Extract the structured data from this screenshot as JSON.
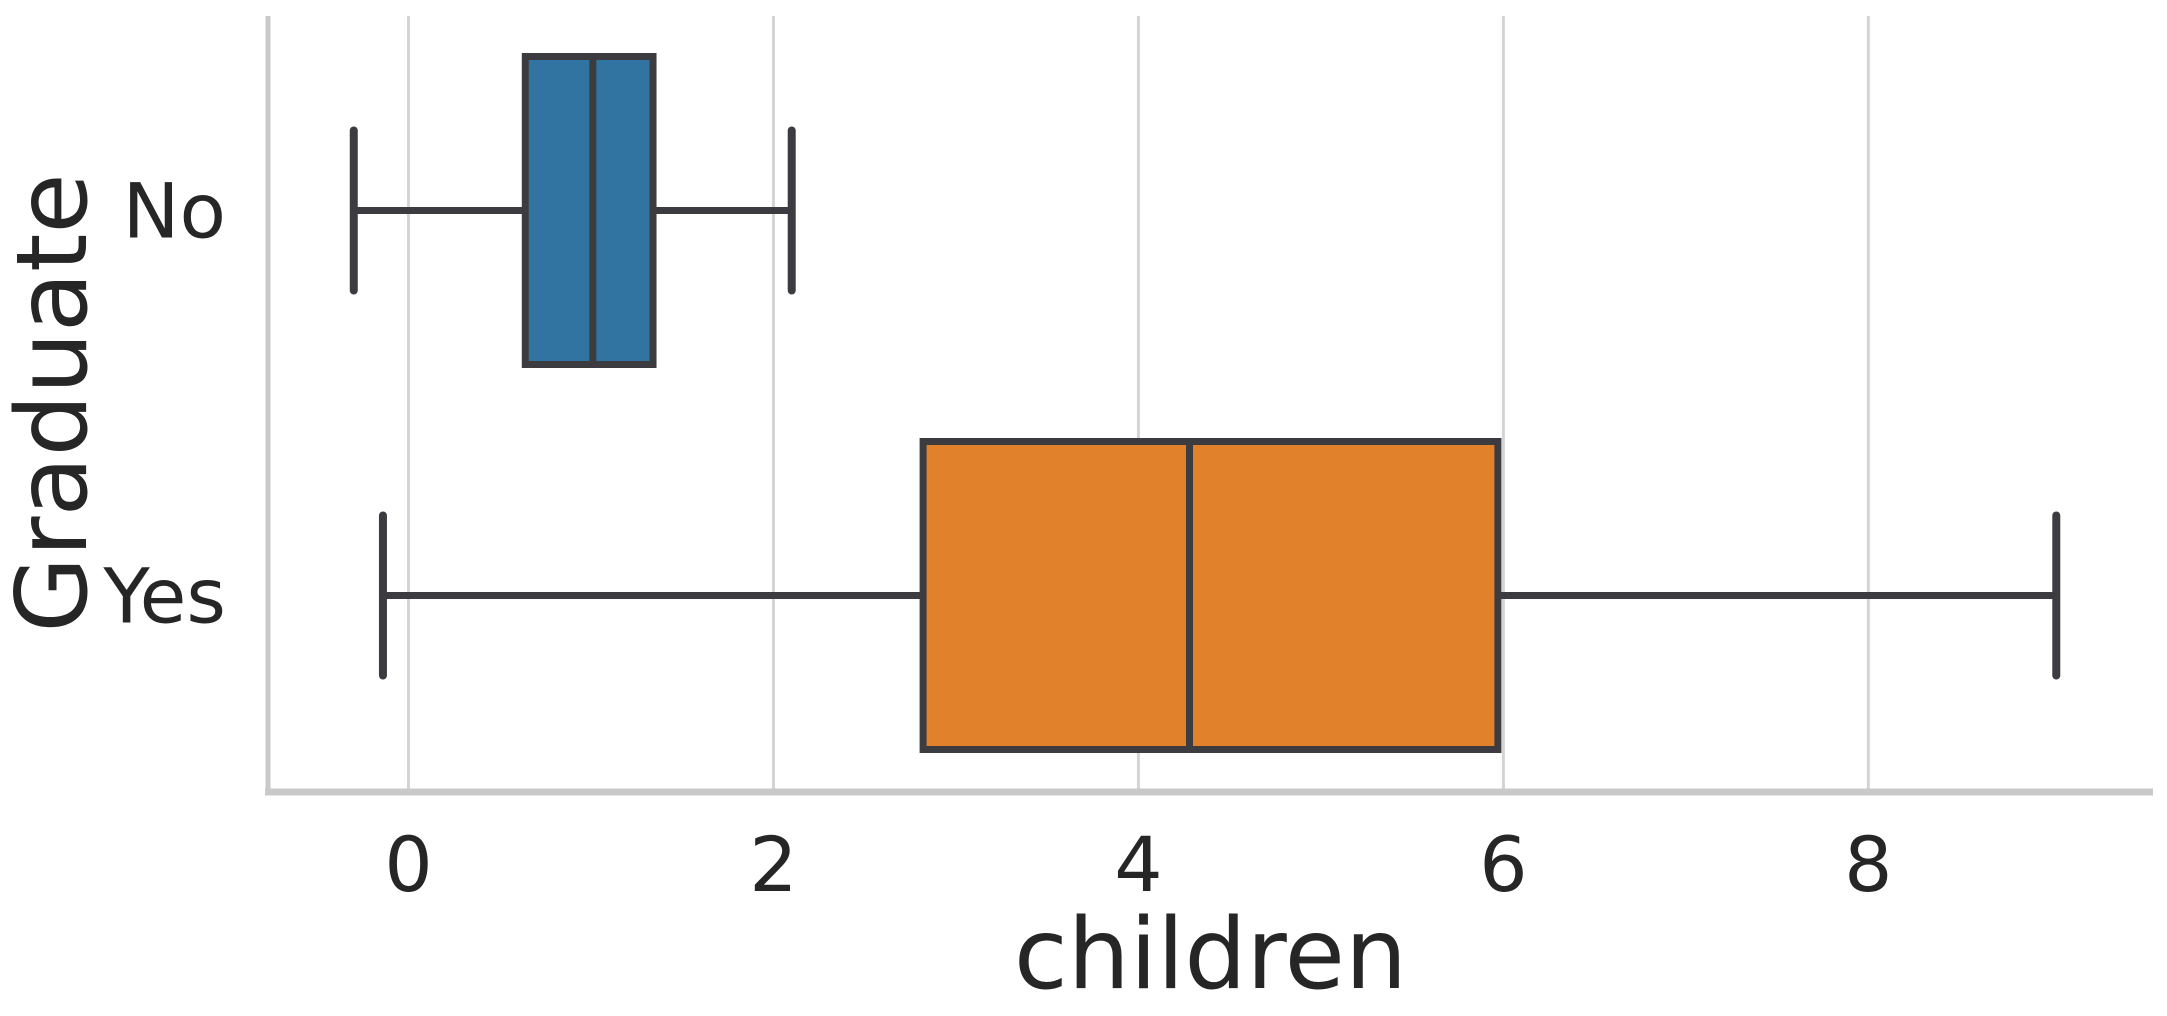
{
  "figure": {
    "background": "#ffffff"
  },
  "chart_data": {
    "type": "boxplot",
    "orientation": "horizontal",
    "title": "",
    "xlabel": "children",
    "ylabel": "Graduate",
    "categories": [
      "No",
      "Yes"
    ],
    "x_ticks": [
      "0",
      "2",
      "4",
      "6",
      "8"
    ],
    "x_tick_values": [
      0,
      2,
      4,
      6,
      8
    ],
    "xlim": [
      -0.77,
      9.56
    ],
    "grid": true,
    "legend": false,
    "series": [
      {
        "label": "No",
        "color": "#3274a1",
        "whisker_low": -0.3,
        "q1": 0.64,
        "median": 1.01,
        "q3": 1.34,
        "whisker_high": 2.1
      },
      {
        "label": "Yes",
        "color": "#e1812c",
        "whisker_low": -0.14,
        "q1": 2.82,
        "median": 4.28,
        "q3": 5.97,
        "whisker_high": 9.03
      }
    ],
    "style": {
      "box_line_color": "#3c3c40",
      "grid_color": "#d4d4d4",
      "spine_color": "#c9c9c9",
      "text_color": "#262626",
      "tick_font_px": 76,
      "label_font_px": 98
    }
  }
}
